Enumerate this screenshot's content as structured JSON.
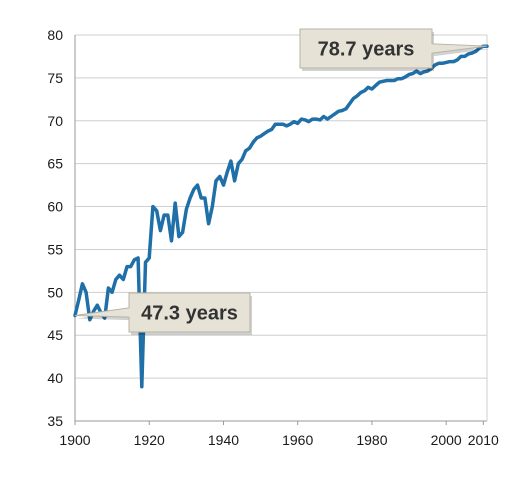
{
  "chart_data": {
    "type": "line",
    "title": "",
    "xlabel": "",
    "ylabel": "",
    "xlim": [
      1900,
      2011
    ],
    "ylim": [
      35,
      80
    ],
    "x_ticks": [
      1900,
      1920,
      1940,
      1960,
      1980,
      2000,
      2010
    ],
    "y_ticks": [
      35,
      40,
      45,
      50,
      55,
      60,
      65,
      70,
      75,
      80
    ],
    "grid": true,
    "legend": "none",
    "line_color": "#1f6fa8",
    "series": [
      {
        "name": "",
        "points": [
          [
            1900,
            47.3
          ],
          [
            1901,
            49.1
          ],
          [
            1902,
            51.0
          ],
          [
            1903,
            50.0
          ],
          [
            1904,
            46.8
          ],
          [
            1905,
            47.8
          ],
          [
            1906,
            48.5
          ],
          [
            1907,
            47.6
          ],
          [
            1908,
            47.0
          ],
          [
            1909,
            50.5
          ],
          [
            1910,
            50.0
          ],
          [
            1911,
            51.5
          ],
          [
            1912,
            52.0
          ],
          [
            1913,
            51.5
          ],
          [
            1914,
            53.0
          ],
          [
            1915,
            53.0
          ],
          [
            1916,
            53.8
          ],
          [
            1917,
            54.0
          ],
          [
            1918,
            39.0
          ],
          [
            1919,
            53.5
          ],
          [
            1920,
            54.0
          ],
          [
            1921,
            60.0
          ],
          [
            1922,
            59.5
          ],
          [
            1923,
            57.2
          ],
          [
            1924,
            59.0
          ],
          [
            1925,
            59.0
          ],
          [
            1926,
            56.0
          ],
          [
            1927,
            60.4
          ],
          [
            1928,
            56.5
          ],
          [
            1929,
            57.0
          ],
          [
            1930,
            59.7
          ],
          [
            1931,
            61.0
          ],
          [
            1932,
            62.0
          ],
          [
            1933,
            62.5
          ],
          [
            1934,
            61.0
          ],
          [
            1935,
            61.0
          ],
          [
            1936,
            58.0
          ],
          [
            1937,
            60.0
          ],
          [
            1938,
            63.0
          ],
          [
            1939,
            63.5
          ],
          [
            1940,
            62.5
          ],
          [
            1941,
            64.0
          ],
          [
            1942,
            65.3
          ],
          [
            1943,
            63.0
          ],
          [
            1944,
            65.0
          ],
          [
            1945,
            65.5
          ],
          [
            1946,
            66.5
          ],
          [
            1947,
            66.8
          ],
          [
            1948,
            67.5
          ],
          [
            1949,
            68.0
          ],
          [
            1950,
            68.2
          ],
          [
            1951,
            68.5
          ],
          [
            1952,
            68.8
          ],
          [
            1953,
            69.0
          ],
          [
            1954,
            69.6
          ],
          [
            1955,
            69.6
          ],
          [
            1956,
            69.6
          ],
          [
            1957,
            69.4
          ],
          [
            1958,
            69.6
          ],
          [
            1959,
            69.9
          ],
          [
            1960,
            69.7
          ],
          [
            1961,
            70.2
          ],
          [
            1962,
            70.1
          ],
          [
            1963,
            69.9
          ],
          [
            1964,
            70.2
          ],
          [
            1965,
            70.2
          ],
          [
            1966,
            70.1
          ],
          [
            1967,
            70.5
          ],
          [
            1968,
            70.2
          ],
          [
            1969,
            70.5
          ],
          [
            1970,
            70.8
          ],
          [
            1971,
            71.1
          ],
          [
            1972,
            71.2
          ],
          [
            1973,
            71.4
          ],
          [
            1974,
            72.0
          ],
          [
            1975,
            72.6
          ],
          [
            1976,
            72.9
          ],
          [
            1977,
            73.3
          ],
          [
            1978,
            73.5
          ],
          [
            1979,
            73.9
          ],
          [
            1980,
            73.7
          ],
          [
            1981,
            74.1
          ],
          [
            1982,
            74.5
          ],
          [
            1983,
            74.6
          ],
          [
            1984,
            74.7
          ],
          [
            1985,
            74.7
          ],
          [
            1986,
            74.7
          ],
          [
            1987,
            74.9
          ],
          [
            1988,
            74.9
          ],
          [
            1989,
            75.1
          ],
          [
            1990,
            75.4
          ],
          [
            1991,
            75.5
          ],
          [
            1992,
            75.8
          ],
          [
            1993,
            75.5
          ],
          [
            1994,
            75.7
          ],
          [
            1995,
            75.8
          ],
          [
            1996,
            76.1
          ],
          [
            1997,
            76.5
          ],
          [
            1998,
            76.7
          ],
          [
            1999,
            76.7
          ],
          [
            2000,
            76.8
          ],
          [
            2001,
            76.9
          ],
          [
            2002,
            76.9
          ],
          [
            2003,
            77.1
          ],
          [
            2004,
            77.5
          ],
          [
            2005,
            77.5
          ],
          [
            2006,
            77.8
          ],
          [
            2007,
            77.9
          ],
          [
            2008,
            78.1
          ],
          [
            2009,
            78.5
          ],
          [
            2010,
            78.7
          ],
          [
            2011,
            78.7
          ]
        ]
      }
    ],
    "annotations": [
      {
        "text": "47.3 years",
        "x": 1900,
        "y": 47.3
      },
      {
        "text": "78.7 years",
        "x": 2011,
        "y": 78.7
      }
    ]
  }
}
